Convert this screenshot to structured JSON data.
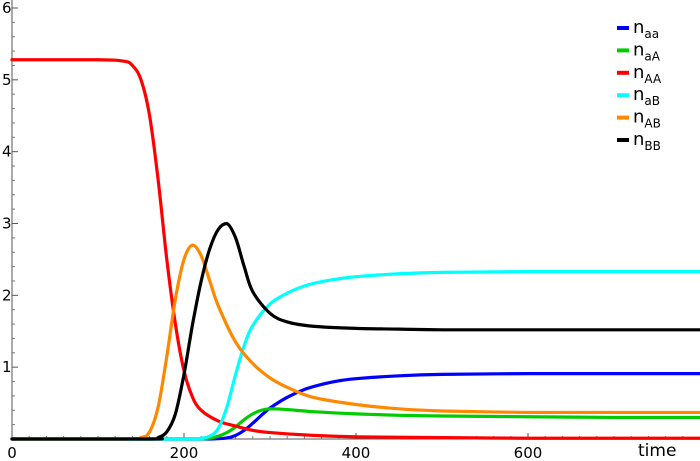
{
  "chart_data": {
    "type": "line",
    "title": "",
    "xlabel": "time",
    "ylabel": "",
    "xlim": [
      0,
      800
    ],
    "ylim": [
      0,
      6
    ],
    "x_ticks": [
      0,
      200,
      400,
      600
    ],
    "y_ticks": [
      1,
      2,
      3,
      4,
      5,
      6
    ],
    "x_tick_labels": [
      "0",
      "200",
      "400",
      "600"
    ],
    "y_tick_labels": [
      "1",
      "2",
      "3",
      "4",
      "5",
      "6"
    ],
    "grid": false,
    "legend_position": "top-right",
    "series": [
      {
        "name": "n",
        "subscript": "aa",
        "color": "#0000ff",
        "x": [
          0,
          210,
          230,
          240,
          250,
          260,
          270,
          280,
          290,
          300,
          320,
          340,
          360,
          380,
          400,
          450,
          500,
          600,
          700,
          800
        ],
        "y": [
          0,
          0,
          0,
          0.005,
          0.015,
          0.05,
          0.12,
          0.22,
          0.33,
          0.43,
          0.58,
          0.69,
          0.76,
          0.81,
          0.84,
          0.88,
          0.9,
          0.91,
          0.91,
          0.91
        ]
      },
      {
        "name": "n",
        "subscript": "aA",
        "color": "#00cc00",
        "x": [
          0,
          200,
          220,
          230,
          240,
          250,
          260,
          270,
          280,
          290,
          300,
          320,
          350,
          400,
          450,
          500,
          600,
          700,
          800
        ],
        "y": [
          0,
          0,
          0,
          0.01,
          0.04,
          0.09,
          0.17,
          0.27,
          0.35,
          0.4,
          0.42,
          0.41,
          0.38,
          0.35,
          0.33,
          0.32,
          0.31,
          0.3,
          0.3
        ]
      },
      {
        "name": "n",
        "subscript": "AA",
        "color": "#ff0000",
        "x": [
          0,
          100,
          130,
          140,
          150,
          160,
          170,
          180,
          190,
          200,
          210,
          220,
          240,
          260,
          280,
          300,
          350,
          400,
          500,
          600,
          700,
          800
        ],
        "y": [
          5.28,
          5.28,
          5.26,
          5.2,
          5.0,
          4.5,
          3.6,
          2.5,
          1.6,
          0.95,
          0.58,
          0.4,
          0.25,
          0.18,
          0.12,
          0.09,
          0.05,
          0.03,
          0.02,
          0.01,
          0.01,
          0.01
        ]
      },
      {
        "name": "n",
        "subscript": "aB",
        "color": "#00ffff",
        "x": [
          0,
          200,
          220,
          230,
          240,
          250,
          260,
          270,
          280,
          300,
          320,
          340,
          360,
          380,
          400,
          450,
          500,
          600,
          700,
          800
        ],
        "y": [
          0,
          0,
          0.01,
          0.04,
          0.15,
          0.45,
          0.9,
          1.3,
          1.58,
          1.88,
          2.03,
          2.13,
          2.19,
          2.23,
          2.26,
          2.3,
          2.32,
          2.33,
          2.33,
          2.33
        ]
      },
      {
        "name": "n",
        "subscript": "AB",
        "color": "#ff8800",
        "x": [
          0,
          130,
          150,
          160,
          170,
          180,
          190,
          200,
          210,
          220,
          230,
          240,
          260,
          280,
          300,
          320,
          350,
          400,
          450,
          500,
          600,
          700,
          800
        ],
        "y": [
          0,
          0,
          0.02,
          0.1,
          0.45,
          1.15,
          1.95,
          2.5,
          2.7,
          2.55,
          2.2,
          1.85,
          1.35,
          1.05,
          0.85,
          0.72,
          0.58,
          0.48,
          0.42,
          0.39,
          0.37,
          0.37,
          0.37
        ]
      },
      {
        "name": "n",
        "subscript": "BB",
        "color": "#000000",
        "x": [
          0,
          160,
          170,
          180,
          190,
          200,
          210,
          220,
          230,
          240,
          250,
          260,
          270,
          280,
          300,
          320,
          350,
          400,
          450,
          500,
          600,
          700,
          800
        ],
        "y": [
          0,
          0,
          0.02,
          0.1,
          0.35,
          0.9,
          1.6,
          2.2,
          2.65,
          2.92,
          3.0,
          2.8,
          2.4,
          2.05,
          1.75,
          1.63,
          1.57,
          1.54,
          1.53,
          1.52,
          1.52,
          1.52,
          1.52
        ]
      }
    ]
  }
}
